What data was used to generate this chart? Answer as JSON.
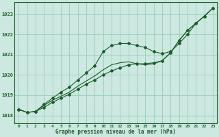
{
  "xlabel": "Graphe pression niveau de la mer (hPa)",
  "background_color": "#cce8e0",
  "grid_color": "#99ccbb",
  "line_color": "#1a5c2a",
  "xlim": [
    -0.5,
    23.5
  ],
  "ylim": [
    1017.6,
    1023.6
  ],
  "yticks": [
    1018,
    1019,
    1020,
    1021,
    1022,
    1023
  ],
  "xticks": [
    0,
    1,
    2,
    3,
    4,
    5,
    6,
    7,
    8,
    9,
    10,
    11,
    12,
    13,
    14,
    15,
    16,
    17,
    18,
    19,
    20,
    21,
    22,
    23
  ],
  "xtick_labels": [
    "0",
    "1",
    "2",
    "3",
    "4",
    "5",
    "6",
    "7",
    "8",
    "9",
    "10",
    "11",
    "12",
    "13",
    "14",
    "15",
    "16",
    "17",
    "18",
    "19",
    "20",
    "21",
    "22",
    "23"
  ],
  "series1_x": [
    0,
    1,
    2,
    3,
    4,
    5,
    6,
    7,
    8,
    9,
    10,
    11,
    12,
    13,
    14,
    15,
    16,
    17,
    18,
    19,
    20,
    21,
    22,
    23
  ],
  "series1_y": [
    1018.3,
    1018.15,
    1018.2,
    1018.4,
    1018.65,
    1018.85,
    1019.05,
    1019.3,
    1019.55,
    1019.75,
    1020.0,
    1020.2,
    1020.35,
    1020.5,
    1020.55,
    1020.55,
    1020.6,
    1020.7,
    1021.1,
    1021.7,
    1022.2,
    1022.55,
    1022.9,
    1023.3
  ],
  "series2_x": [
    0,
    1,
    2,
    3,
    4,
    5,
    6,
    7,
    8,
    9,
    10,
    11,
    12,
    13,
    14,
    15,
    16,
    17,
    18,
    19,
    20,
    21,
    22,
    23
  ],
  "series2_y": [
    1018.3,
    1018.15,
    1018.2,
    1018.55,
    1018.85,
    1019.15,
    1019.4,
    1019.75,
    1020.1,
    1020.45,
    1021.15,
    1021.45,
    1021.55,
    1021.55,
    1021.45,
    1021.35,
    1021.15,
    1021.05,
    1021.15,
    1021.55,
    1022.0,
    1022.55,
    1022.9,
    1023.3
  ],
  "series3_x": [
    0,
    1,
    2,
    3,
    4,
    5,
    6,
    7,
    8,
    9,
    10,
    11,
    12,
    13,
    14,
    15,
    16,
    17,
    18,
    19,
    20,
    21,
    22,
    23
  ],
  "series3_y": [
    1018.3,
    1018.15,
    1018.2,
    1018.5,
    1018.75,
    1018.95,
    1019.15,
    1019.45,
    1019.7,
    1019.95,
    1020.25,
    1020.5,
    1020.6,
    1020.65,
    1020.55,
    1020.5,
    1020.55,
    1020.7,
    1021.1,
    1021.7,
    1022.2,
    1022.55,
    1022.9,
    1023.3
  ]
}
